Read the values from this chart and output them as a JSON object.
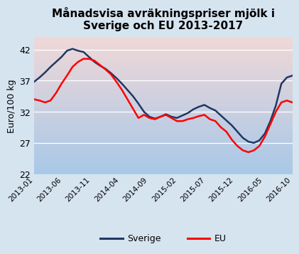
{
  "title": "Månadsvisa avräkningspriser mjölk i\nSverige och EU 2013-2017",
  "ylabel": "Euro/100 kg",
  "ylim": [
    22,
    44
  ],
  "yticks": [
    22,
    27,
    32,
    37,
    42
  ],
  "background_outer": "#d6e4f0",
  "background_top": "#a8c8e8",
  "background_bottom": "#f0d8d8",
  "xlabel_labels": [
    "2013-01",
    "2013-06",
    "2013-11",
    "2014-04",
    "2014-09",
    "2015-02",
    "2015-07",
    "2015-12",
    "2016-05",
    "2016-10"
  ],
  "sverige_color": "#1f3864",
  "eu_color": "#ff0000",
  "line_width": 1.8,
  "sverige": [
    36.8,
    37.5,
    38.3,
    39.2,
    40.0,
    40.8,
    41.8,
    42.1,
    41.8,
    41.6,
    40.8,
    40.0,
    39.4,
    38.9,
    38.2,
    37.4,
    36.5,
    35.5,
    34.5,
    33.3,
    32.0,
    31.2,
    30.9,
    31.2,
    31.6,
    31.2,
    31.0,
    31.4,
    31.8,
    32.4,
    32.8,
    33.1,
    32.6,
    32.2,
    31.4,
    30.6,
    29.8,
    28.8,
    27.8,
    27.2,
    27.0,
    27.4,
    28.5,
    30.5,
    33.0,
    36.5,
    37.5,
    37.8
  ],
  "eu": [
    34.0,
    33.8,
    33.5,
    33.8,
    35.0,
    36.5,
    37.8,
    39.2,
    40.0,
    40.5,
    40.5,
    40.2,
    39.5,
    38.8,
    38.0,
    36.8,
    35.5,
    34.0,
    32.5,
    31.0,
    31.5,
    31.0,
    30.8,
    31.2,
    31.5,
    31.0,
    30.5,
    30.5,
    30.8,
    31.0,
    31.3,
    31.5,
    30.8,
    30.5,
    29.5,
    28.8,
    27.5,
    26.5,
    25.8,
    25.5,
    25.8,
    26.5,
    28.0,
    30.0,
    32.0,
    33.5,
    33.8,
    33.5
  ]
}
